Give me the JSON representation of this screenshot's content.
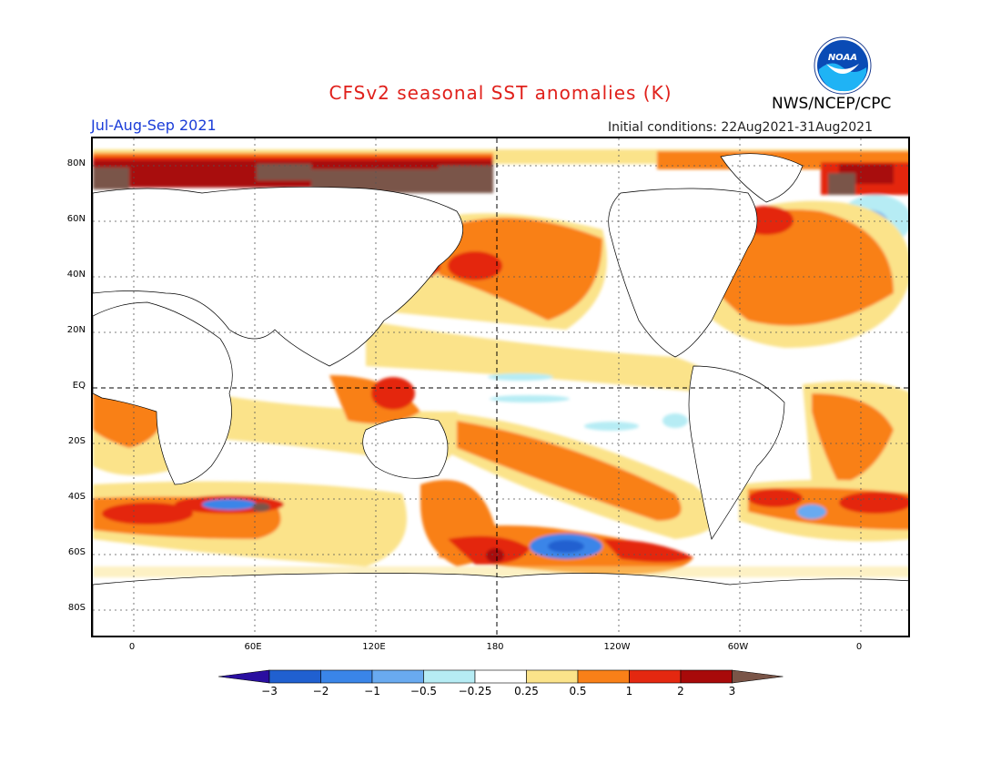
{
  "header": {
    "title": "CFSv2 seasonal SST anomalies (K)",
    "organization": "NWS/NCEP/CPC",
    "logo_text": "NOAA",
    "season": "Jul-Aug-Sep 2021",
    "initial_conditions": "Initial conditions: 22Aug2021-31Aug2021"
  },
  "map": {
    "lat_labels": [
      "80N",
      "60N",
      "40N",
      "20N",
      "EQ",
      "20S",
      "40S",
      "60S",
      "80S"
    ],
    "lon_labels": [
      "0",
      "60E",
      "120E",
      "180",
      "120W",
      "60W",
      "0"
    ]
  },
  "legend": {
    "labels": [
      "-3",
      "-2",
      "-1",
      "-0.5",
      "-0.25",
      "0.25",
      "0.5",
      "1",
      "2",
      "3"
    ],
    "colors": [
      "#2a0fa0",
      "#2060d0",
      "#3a85e8",
      "#69aaf0",
      "#b6ecf4",
      "#ffffff",
      "#fbe38a",
      "#f98018",
      "#e42810",
      "#a80a0a",
      "#7a5548"
    ]
  }
}
